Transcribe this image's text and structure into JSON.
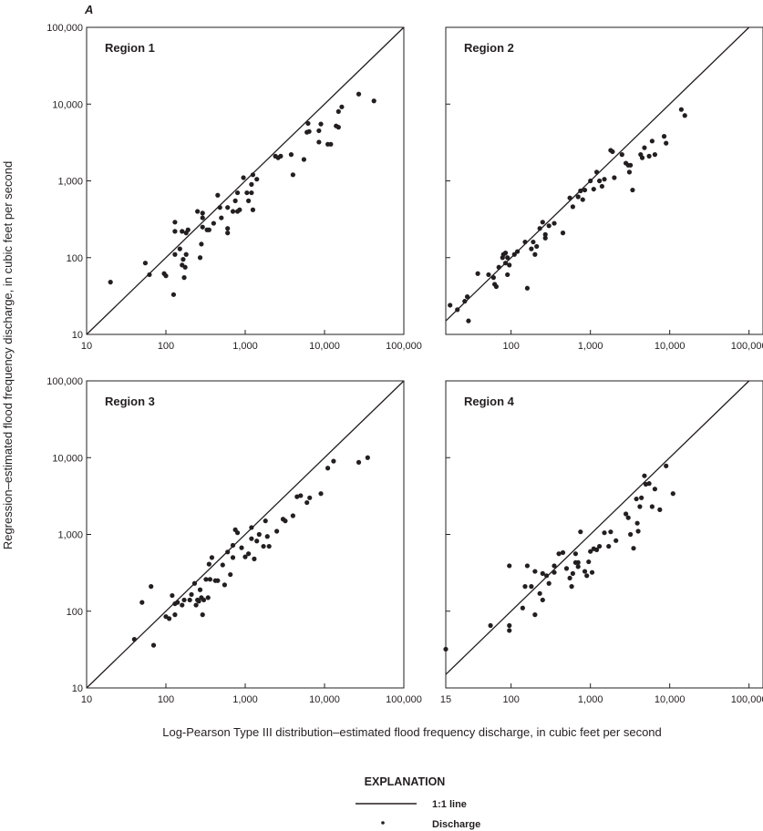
{
  "figure": {
    "panel_letter": "A",
    "xlabel": "Log-Pearson Type III distribution–estimated flood frequency discharge, in cubic feet per second",
    "ylabel": "Regression–estimated flood frequency discharge, in cubic feet per second"
  },
  "legend": {
    "title": "EXPLANATION",
    "line_label": "1:1 line",
    "point_label": "Discharge"
  },
  "colors": {
    "ink": "#231f20",
    "background": "#ffffff"
  },
  "chart_data": [
    {
      "type": "scatter",
      "title": "Region 1",
      "xscale": "log",
      "yscale": "log",
      "xlim": [
        10,
        100000
      ],
      "ylim": [
        10,
        100000
      ],
      "xticks": [
        "10",
        "100",
        "1,000",
        "10,000",
        "100,000"
      ],
      "yticks": [
        "10",
        "100",
        "1,000",
        "10,000",
        "100,000"
      ],
      "reference_line": "1:1",
      "series": [
        {
          "name": "Discharge",
          "points": [
            [
              20,
              48
            ],
            [
              55,
              85
            ],
            [
              62,
              60
            ],
            [
              95,
              62
            ],
            [
              100,
              58
            ],
            [
              125,
              33
            ],
            [
              130,
              110
            ],
            [
              130,
              220
            ],
            [
              130,
              290
            ],
            [
              150,
              130
            ],
            [
              160,
              80
            ],
            [
              160,
              220
            ],
            [
              165,
              95
            ],
            [
              170,
              55
            ],
            [
              175,
              75
            ],
            [
              180,
              110
            ],
            [
              180,
              210
            ],
            [
              190,
              230
            ],
            [
              250,
              400
            ],
            [
              270,
              100
            ],
            [
              280,
              150
            ],
            [
              290,
              250
            ],
            [
              290,
              330
            ],
            [
              290,
              380
            ],
            [
              330,
              230
            ],
            [
              350,
              230
            ],
            [
              400,
              280
            ],
            [
              450,
              650
            ],
            [
              480,
              450
            ],
            [
              500,
              330
            ],
            [
              600,
              450
            ],
            [
              600,
              210
            ],
            [
              600,
              240
            ],
            [
              700,
              400
            ],
            [
              750,
              550
            ],
            [
              800,
              700
            ],
            [
              800,
              400
            ],
            [
              850,
              420
            ],
            [
              950,
              1100
            ],
            [
              1050,
              700
            ],
            [
              1100,
              550
            ],
            [
              1200,
              900
            ],
            [
              1200,
              700
            ],
            [
              1250,
              1200
            ],
            [
              1250,
              420
            ],
            [
              1400,
              1050
            ],
            [
              2400,
              2100
            ],
            [
              2600,
              2000
            ],
            [
              2800,
              2100
            ],
            [
              3800,
              2200
            ],
            [
              4000,
              1200
            ],
            [
              5500,
              1900
            ],
            [
              6000,
              4300
            ],
            [
              6200,
              5600
            ],
            [
              6400,
              4400
            ],
            [
              8500,
              3200
            ],
            [
              8500,
              4500
            ],
            [
              9000,
              5500
            ],
            [
              11000,
              3000
            ],
            [
              12000,
              3000
            ],
            [
              14000,
              5200
            ],
            [
              15000,
              5000
            ],
            [
              15000,
              8000
            ],
            [
              16500,
              9200
            ],
            [
              27000,
              13500
            ],
            [
              42000,
              11000
            ]
          ]
        }
      ]
    },
    {
      "type": "scatter",
      "title": "Region 2",
      "xscale": "log",
      "yscale": "log",
      "xlim": [
        15,
        150000
      ],
      "ylim": [
        10,
        100000
      ],
      "xticks": [
        "100",
        "1,000",
        "10,000",
        "100,000"
      ],
      "yticks": [],
      "reference_line": "1:1",
      "series": [
        {
          "name": "Discharge",
          "points": [
            [
              17,
              24
            ],
            [
              21,
              21
            ],
            [
              26,
              27
            ],
            [
              28,
              31
            ],
            [
              29,
              15
            ],
            [
              38,
              62
            ],
            [
              52,
              60
            ],
            [
              60,
              55
            ],
            [
              62,
              45
            ],
            [
              65,
              42
            ],
            [
              70,
              75
            ],
            [
              78,
              100
            ],
            [
              80,
              110
            ],
            [
              85,
              85
            ],
            [
              85,
              115
            ],
            [
              90,
              60
            ],
            [
              90,
              100
            ],
            [
              95,
              80
            ],
            [
              110,
              110
            ],
            [
              120,
              120
            ],
            [
              150,
              160
            ],
            [
              160,
              40
            ],
            [
              180,
              130
            ],
            [
              190,
              160
            ],
            [
              200,
              110
            ],
            [
              210,
              140
            ],
            [
              230,
              240
            ],
            [
              250,
              290
            ],
            [
              270,
              200
            ],
            [
              270,
              180
            ],
            [
              300,
              260
            ],
            [
              350,
              280
            ],
            [
              450,
              210
            ],
            [
              550,
              600
            ],
            [
              600,
              460
            ],
            [
              700,
              620
            ],
            [
              750,
              740
            ],
            [
              800,
              570
            ],
            [
              850,
              760
            ],
            [
              1000,
              1000
            ],
            [
              1100,
              780
            ],
            [
              1200,
              1300
            ],
            [
              1300,
              1000
            ],
            [
              1400,
              850
            ],
            [
              1500,
              1050
            ],
            [
              1800,
              2500
            ],
            [
              1900,
              2400
            ],
            [
              2000,
              1100
            ],
            [
              2500,
              2200
            ],
            [
              2800,
              1700
            ],
            [
              3000,
              1600
            ],
            [
              3100,
              1300
            ],
            [
              3200,
              1600
            ],
            [
              3400,
              760
            ],
            [
              4300,
              2200
            ],
            [
              4500,
              2000
            ],
            [
              4800,
              2700
            ],
            [
              5500,
              2100
            ],
            [
              6000,
              3300
            ],
            [
              6500,
              2200
            ],
            [
              8500,
              3800
            ],
            [
              9000,
              3100
            ],
            [
              14000,
              8500
            ],
            [
              15500,
              7100
            ]
          ]
        }
      ]
    },
    {
      "type": "scatter",
      "title": "Region 3",
      "xscale": "log",
      "yscale": "log",
      "xlim": [
        10,
        100000
      ],
      "ylim": [
        10,
        100000
      ],
      "xticks": [
        "10",
        "100",
        "1,000",
        "10,000",
        "100,000"
      ],
      "yticks": [
        "10",
        "100",
        "1,000",
        "10,000",
        "100,000"
      ],
      "reference_line": "1:1",
      "series": [
        {
          "name": "Discharge",
          "points": [
            [
              40,
              43
            ],
            [
              50,
              130
            ],
            [
              65,
              210
            ],
            [
              70,
              36
            ],
            [
              100,
              85
            ],
            [
              110,
              80
            ],
            [
              120,
              160
            ],
            [
              130,
              90
            ],
            [
              130,
              125
            ],
            [
              140,
              130
            ],
            [
              160,
              120
            ],
            [
              170,
              140
            ],
            [
              200,
              140
            ],
            [
              210,
              165
            ],
            [
              230,
              230
            ],
            [
              240,
              120
            ],
            [
              250,
              140
            ],
            [
              260,
              135
            ],
            [
              270,
              190
            ],
            [
              280,
              150
            ],
            [
              290,
              90
            ],
            [
              300,
              140
            ],
            [
              320,
              260
            ],
            [
              340,
              150
            ],
            [
              350,
              410
            ],
            [
              360,
              260
            ],
            [
              380,
              500
            ],
            [
              420,
              250
            ],
            [
              450,
              250
            ],
            [
              520,
              400
            ],
            [
              550,
              220
            ],
            [
              600,
              590
            ],
            [
              650,
              300
            ],
            [
              700,
              720
            ],
            [
              700,
              500
            ],
            [
              750,
              1150
            ],
            [
              800,
              1050
            ],
            [
              900,
              670
            ],
            [
              1000,
              510
            ],
            [
              1100,
              560
            ],
            [
              1200,
              880
            ],
            [
              1200,
              1230
            ],
            [
              1300,
              480
            ],
            [
              1400,
              820
            ],
            [
              1500,
              1000
            ],
            [
              1700,
              700
            ],
            [
              1800,
              1500
            ],
            [
              1900,
              940
            ],
            [
              2000,
              700
            ],
            [
              2500,
              1100
            ],
            [
              3000,
              1580
            ],
            [
              3200,
              1500
            ],
            [
              4000,
              1750
            ],
            [
              4500,
              3100
            ],
            [
              5000,
              3200
            ],
            [
              6000,
              2600
            ],
            [
              6500,
              3000
            ],
            [
              9000,
              3400
            ],
            [
              11000,
              7300
            ],
            [
              13000,
              9000
            ],
            [
              27000,
              8700
            ],
            [
              35000,
              10000
            ]
          ]
        }
      ]
    },
    {
      "type": "scatter",
      "title": "Region 4",
      "xscale": "log",
      "yscale": "log",
      "xlim": [
        15,
        150000
      ],
      "ylim": [
        10,
        100000
      ],
      "xticks": [
        "15",
        "100",
        "1,000",
        "10,000",
        "100,000"
      ],
      "yticks": [],
      "reference_line": "1:1",
      "series": [
        {
          "name": "Discharge",
          "points": [
            [
              15,
              32
            ],
            [
              55,
              65
            ],
            [
              95,
              56
            ],
            [
              95,
              65
            ],
            [
              95,
              390
            ],
            [
              140,
              110
            ],
            [
              150,
              210
            ],
            [
              160,
              390
            ],
            [
              180,
              210
            ],
            [
              200,
              330
            ],
            [
              200,
              90
            ],
            [
              230,
              170
            ],
            [
              250,
              140
            ],
            [
              250,
              310
            ],
            [
              280,
              290
            ],
            [
              300,
              230
            ],
            [
              350,
              320
            ],
            [
              350,
              390
            ],
            [
              400,
              560
            ],
            [
              450,
              580
            ],
            [
              500,
              360
            ],
            [
              550,
              270
            ],
            [
              580,
              210
            ],
            [
              600,
              310
            ],
            [
              650,
              430
            ],
            [
              650,
              560
            ],
            [
              700,
              380
            ],
            [
              700,
              430
            ],
            [
              750,
              1080
            ],
            [
              850,
              330
            ],
            [
              900,
              290
            ],
            [
              950,
              440
            ],
            [
              1000,
              600
            ],
            [
              1050,
              320
            ],
            [
              1100,
              650
            ],
            [
              1200,
              630
            ],
            [
              1300,
              700
            ],
            [
              1500,
              1050
            ],
            [
              1700,
              700
            ],
            [
              1800,
              1080
            ],
            [
              2100,
              830
            ],
            [
              2800,
              1850
            ],
            [
              3000,
              1650
            ],
            [
              3200,
              1000
            ],
            [
              3500,
              660
            ],
            [
              3800,
              2900
            ],
            [
              3900,
              1400
            ],
            [
              4000,
              1100
            ],
            [
              4200,
              2300
            ],
            [
              4400,
              3000
            ],
            [
              4800,
              5800
            ],
            [
              5000,
              4500
            ],
            [
              5500,
              4600
            ],
            [
              6000,
              2300
            ],
            [
              6500,
              3900
            ],
            [
              7500,
              2100
            ],
            [
              9000,
              7800
            ],
            [
              11000,
              3400
            ]
          ]
        }
      ]
    }
  ]
}
